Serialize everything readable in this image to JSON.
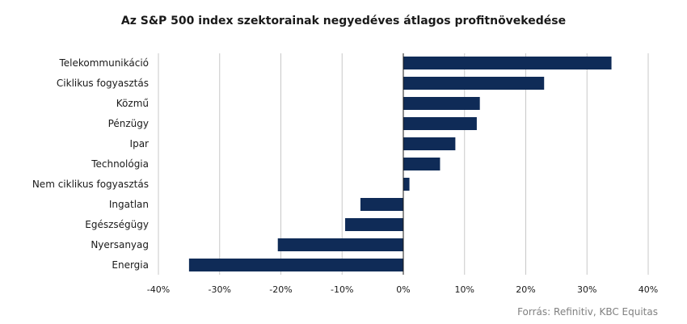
{
  "chart_data": {
    "type": "bar",
    "orientation": "horizontal",
    "title": "Az S&P 500 index szektorainak negyedéves átlagos profitnövekedése",
    "categories": [
      "Telekommunikáció",
      "Ciklikus fogyasztás",
      "Közmű",
      "Pénzügy",
      "Ipar",
      "Technológia",
      "Nem ciklikus fogyasztás",
      "Ingatlan",
      "Egészségügy",
      "Nyersanyag",
      "Energia"
    ],
    "values": [
      34.0,
      23.0,
      12.5,
      12.0,
      8.5,
      6.0,
      1.0,
      -7.0,
      -9.5,
      -20.5,
      -35.0
    ],
    "unit": "%",
    "xlim": [
      -40,
      40
    ],
    "xticks": [
      "-40%",
      "-30%",
      "-20%",
      "-10%",
      "0%",
      "10%",
      "20%",
      "30%",
      "40%"
    ],
    "grid": true,
    "bar_color": "#0f2b57",
    "source": "Forrás: Refinitiv, KBC Equitas"
  }
}
